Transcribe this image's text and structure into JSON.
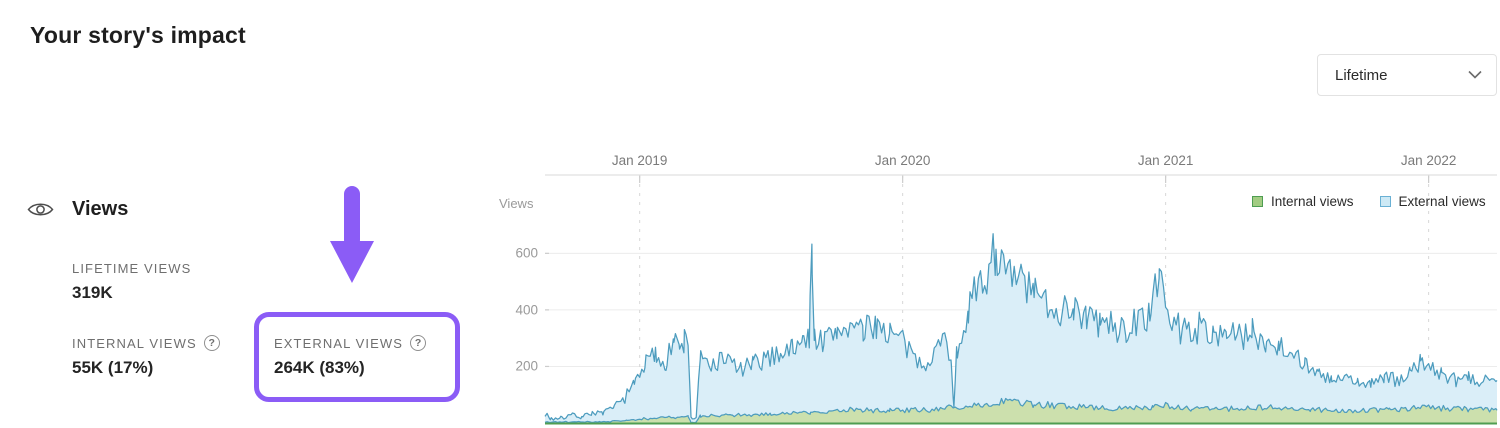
{
  "page": {
    "title": "Your story's impact"
  },
  "period_selector": {
    "value": "Lifetime"
  },
  "icons": {
    "help": "?"
  },
  "annotations": {
    "highlight_color": "#8b5cf6"
  },
  "views_section": {
    "heading": "Views",
    "lifetime_label": "LIFETIME VIEWS",
    "lifetime_value": "319K",
    "internal_label": "INTERNAL VIEWS",
    "internal_value": "55K (17%)",
    "external_label": "EXTERNAL VIEWS",
    "external_value": "264K (83%)"
  },
  "chart_data": {
    "type": "area",
    "title": "",
    "ylabel": "Views",
    "x_ticks": [
      "Jan 2019",
      "Jan 2020",
      "Jan 2021",
      "Jan 2022"
    ],
    "x_tick_years": [
      2019,
      2020,
      2021,
      2022
    ],
    "y_ticks": [
      200,
      400,
      600
    ],
    "x_domain": [
      2018.64,
      2022.26
    ],
    "y_domain": [
      0,
      877
    ],
    "grid": {
      "h_color": "#ececec",
      "v_color": "#d7d7d7",
      "axis_color": "#e0e0e0",
      "tick_color": "#cccccc"
    },
    "baseline_color": "#4f9e52",
    "legend": [
      {
        "label": "Internal views",
        "chip_fill": "#a2cc82",
        "chip_border": "#4e9d52"
      },
      {
        "label": "External views",
        "chip_fill": "#cde9f5",
        "chip_border": "#69b0d4"
      }
    ],
    "noise": {
      "seed": 7,
      "step_years": 0.008
    },
    "series": [
      {
        "name": "External views",
        "line_color": "#4d9cbe",
        "fill_color": "#daeef8",
        "noise_rel": 0.16,
        "noise_abs": 7,
        "keyframes": [
          [
            2018.64,
            35
          ],
          [
            2018.66,
            15
          ],
          [
            2018.7,
            18
          ],
          [
            2018.74,
            28
          ],
          [
            2018.78,
            22
          ],
          [
            2018.82,
            38
          ],
          [
            2018.86,
            32
          ],
          [
            2018.9,
            55
          ],
          [
            2018.94,
            85
          ],
          [
            2018.98,
            140
          ],
          [
            2019.02,
            210
          ],
          [
            2019.06,
            240
          ],
          [
            2019.1,
            215
          ],
          [
            2019.13,
            300
          ],
          [
            2019.15,
            255
          ],
          [
            2019.17,
            295
          ],
          [
            2019.185,
            280
          ],
          [
            2019.195,
            15
          ],
          [
            2019.215,
            15
          ],
          [
            2019.23,
            225
          ],
          [
            2019.28,
            205
          ],
          [
            2019.33,
            228
          ],
          [
            2019.38,
            190
          ],
          [
            2019.43,
            205
          ],
          [
            2019.48,
            228
          ],
          [
            2019.53,
            248
          ],
          [
            2019.58,
            265
          ],
          [
            2019.62,
            288
          ],
          [
            2019.645,
            305
          ],
          [
            2019.655,
            615
          ],
          [
            2019.665,
            305
          ],
          [
            2019.7,
            285
          ],
          [
            2019.75,
            325
          ],
          [
            2019.8,
            348
          ],
          [
            2019.85,
            318
          ],
          [
            2019.9,
            355
          ],
          [
            2019.95,
            318
          ],
          [
            2020.0,
            288
          ],
          [
            2020.04,
            228
          ],
          [
            2020.08,
            208
          ],
          [
            2020.12,
            258
          ],
          [
            2020.16,
            298
          ],
          [
            2020.185,
            238
          ],
          [
            2020.195,
            45
          ],
          [
            2020.205,
            248
          ],
          [
            2020.25,
            415
          ],
          [
            2020.3,
            475
          ],
          [
            2020.355,
            625
          ],
          [
            2020.4,
            498
          ],
          [
            2020.45,
            515
          ],
          [
            2020.5,
            448
          ],
          [
            2020.55,
            428
          ],
          [
            2020.6,
            398
          ],
          [
            2020.65,
            418
          ],
          [
            2020.7,
            368
          ],
          [
            2020.75,
            358
          ],
          [
            2020.8,
            338
          ],
          [
            2020.85,
            328
          ],
          [
            2020.9,
            358
          ],
          [
            2020.94,
            398
          ],
          [
            2020.975,
            505
          ],
          [
            2021.0,
            418
          ],
          [
            2021.04,
            348
          ],
          [
            2021.08,
            328
          ],
          [
            2021.13,
            338
          ],
          [
            2021.18,
            318
          ],
          [
            2021.23,
            328
          ],
          [
            2021.28,
            298
          ],
          [
            2021.33,
            318
          ],
          [
            2021.38,
            288
          ],
          [
            2021.43,
            278
          ],
          [
            2021.48,
            248
          ],
          [
            2021.53,
            218
          ],
          [
            2021.58,
            168
          ],
          [
            2021.63,
            148
          ],
          [
            2021.68,
            158
          ],
          [
            2021.73,
            138
          ],
          [
            2021.78,
            148
          ],
          [
            2021.83,
            158
          ],
          [
            2021.88,
            148
          ],
          [
            2021.93,
            178
          ],
          [
            2021.97,
            218
          ],
          [
            2022.0,
            208
          ],
          [
            2022.05,
            168
          ],
          [
            2022.1,
            148
          ],
          [
            2022.15,
            158
          ],
          [
            2022.2,
            138
          ],
          [
            2022.24,
            178
          ],
          [
            2022.26,
            160
          ]
        ]
      },
      {
        "name": "Internal views",
        "line_color": "#4d9cbe",
        "fill_color": "#cce0ad",
        "noise_rel": 0.18,
        "noise_abs": 2,
        "keyframes": [
          [
            2018.64,
            3
          ],
          [
            2018.85,
            4
          ],
          [
            2018.95,
            8
          ],
          [
            2019.0,
            14
          ],
          [
            2019.1,
            20
          ],
          [
            2019.185,
            22
          ],
          [
            2019.195,
            2
          ],
          [
            2019.215,
            2
          ],
          [
            2019.23,
            24
          ],
          [
            2019.35,
            28
          ],
          [
            2019.5,
            32
          ],
          [
            2019.65,
            38
          ],
          [
            2019.8,
            48
          ],
          [
            2019.95,
            44
          ],
          [
            2020.1,
            48
          ],
          [
            2020.25,
            58
          ],
          [
            2020.36,
            76
          ],
          [
            2020.5,
            66
          ],
          [
            2020.65,
            58
          ],
          [
            2020.8,
            52
          ],
          [
            2020.95,
            55
          ],
          [
            2021.0,
            62
          ],
          [
            2021.1,
            50
          ],
          [
            2021.25,
            52
          ],
          [
            2021.4,
            55
          ],
          [
            2021.55,
            48
          ],
          [
            2021.7,
            42
          ],
          [
            2021.85,
            48
          ],
          [
            2022.0,
            55
          ],
          [
            2022.15,
            48
          ],
          [
            2022.26,
            50
          ]
        ]
      }
    ]
  }
}
